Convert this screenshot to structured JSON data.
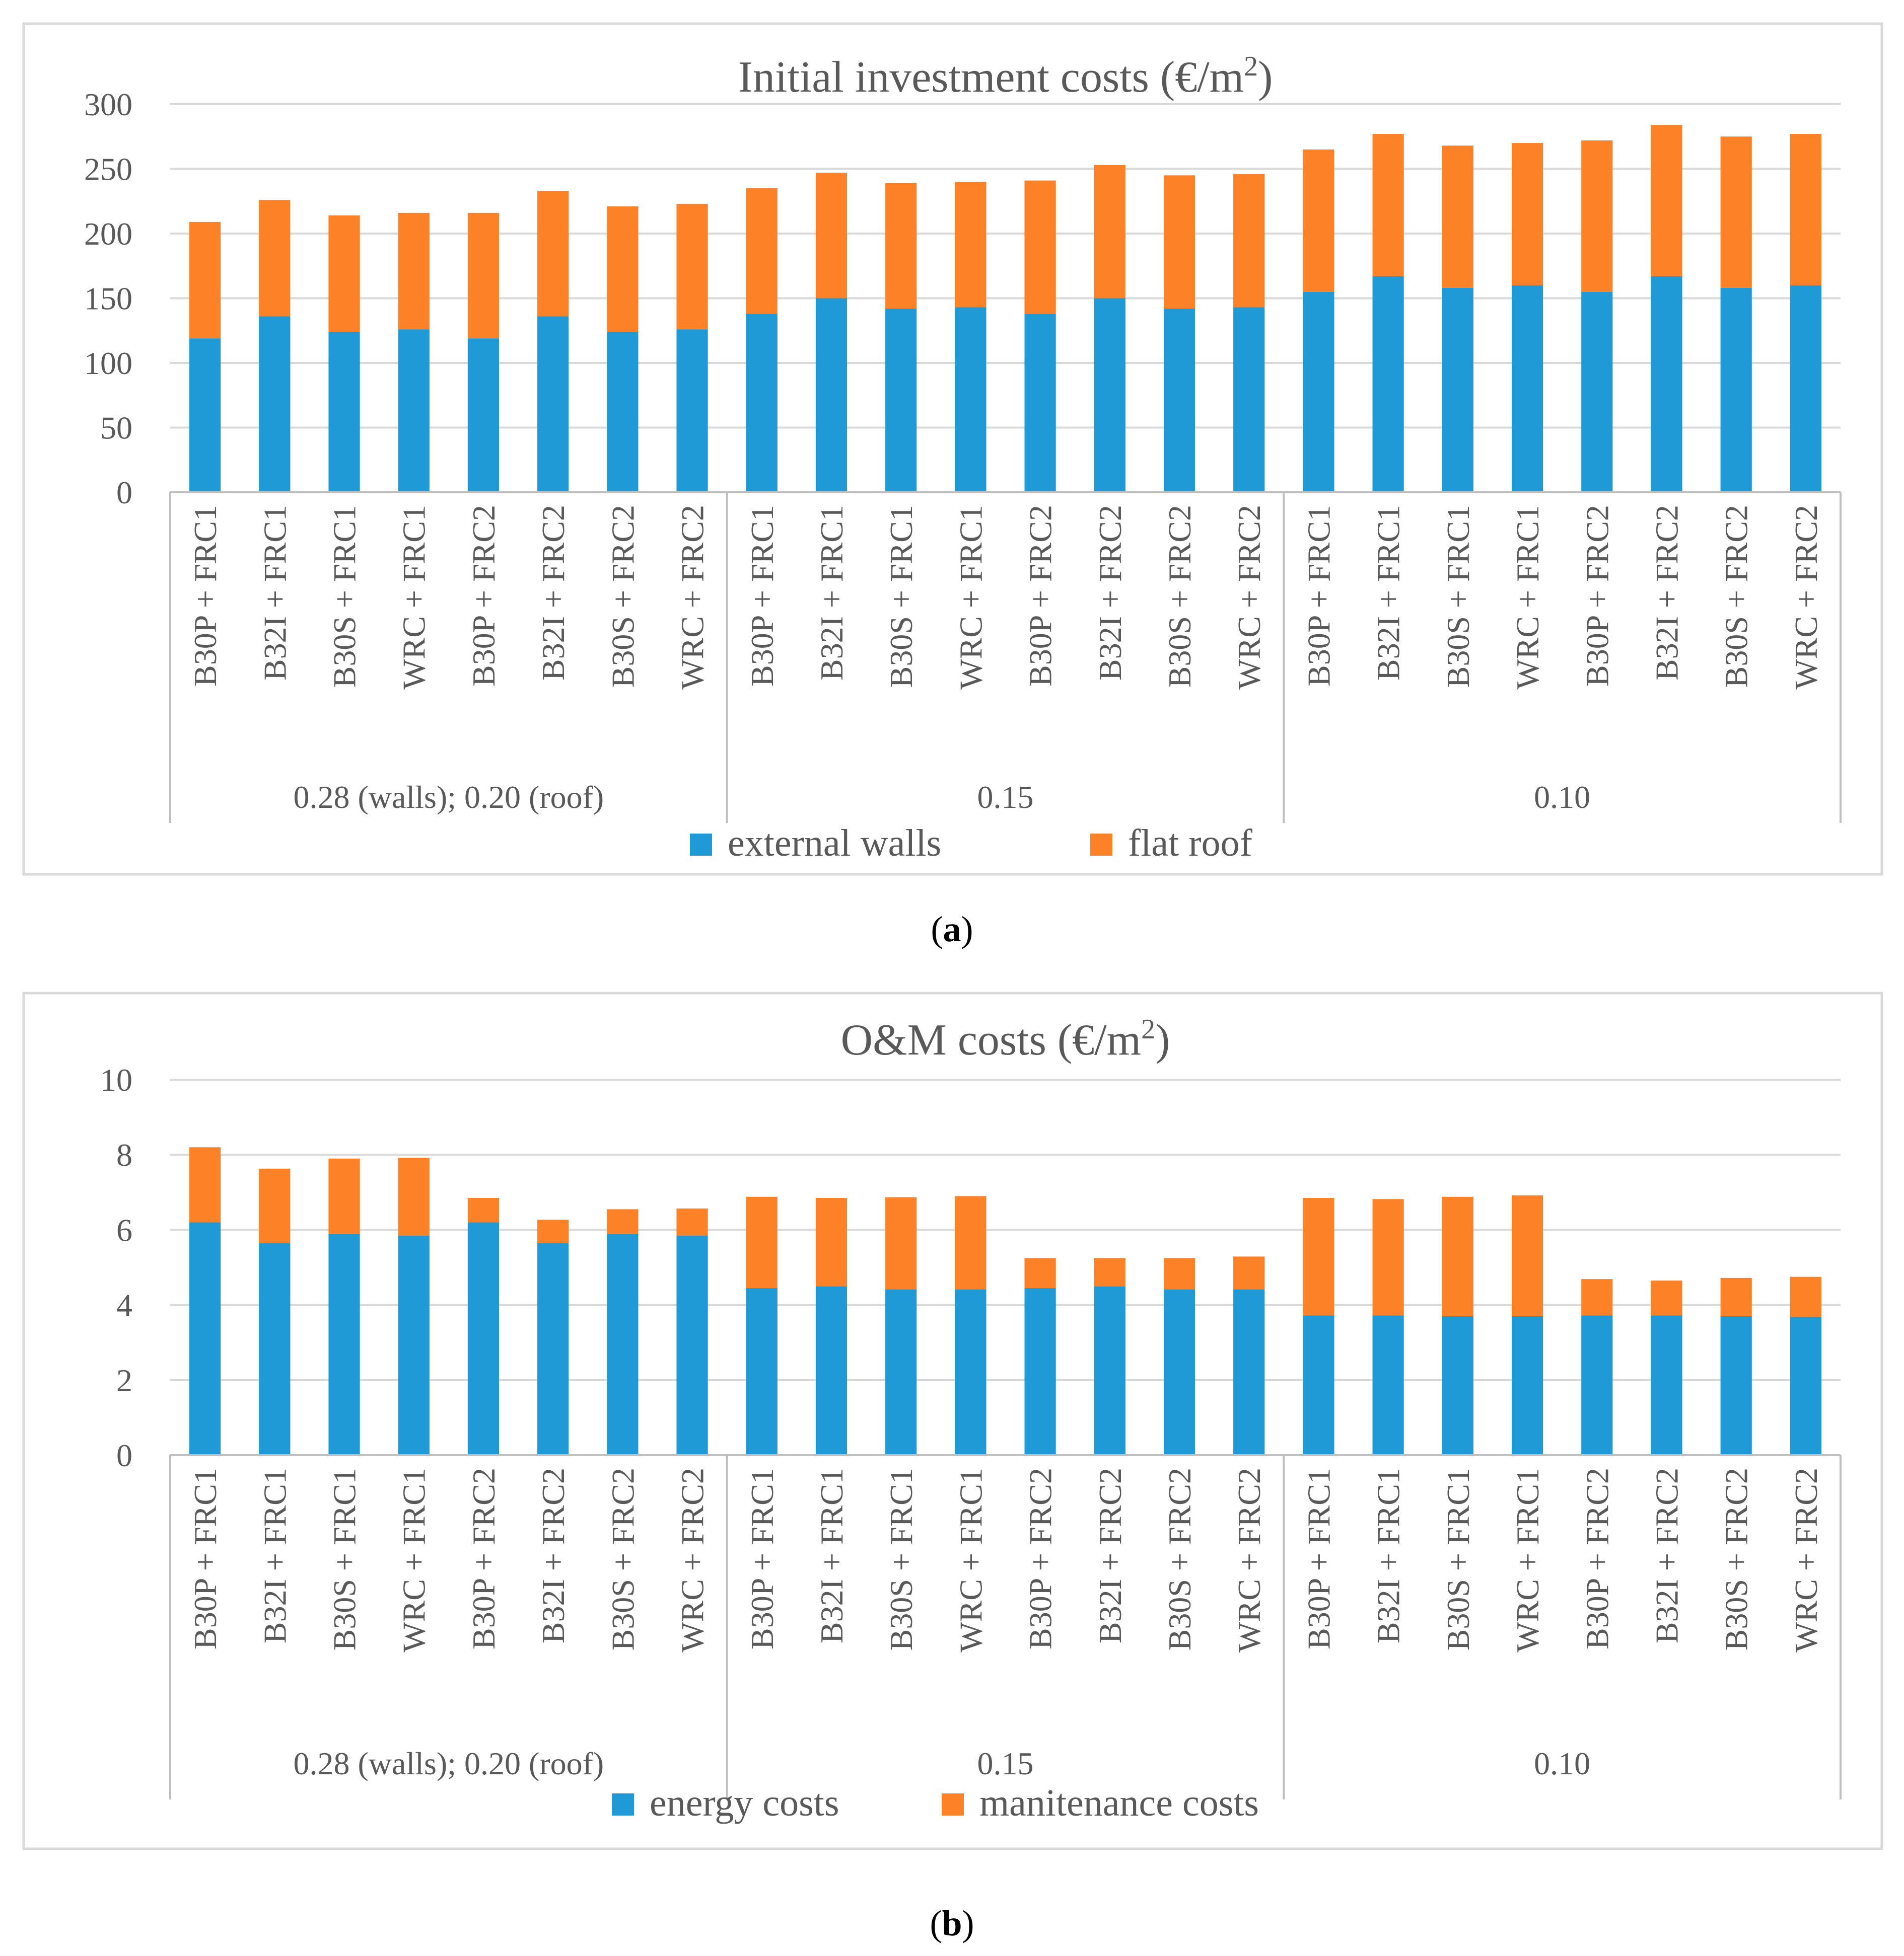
{
  "colors": {
    "series1": "#1f9ad6",
    "series2": "#fd8126",
    "axis": "#bfbfbf",
    "grid": "#d9d9d9",
    "text": "#595959"
  },
  "captions": {
    "a": "a",
    "b": "b"
  },
  "chart_data": [
    {
      "type": "bar",
      "stacked": true,
      "title": "Initial investment costs (€/m",
      "title_sup": "2",
      "title_end": ")",
      "ylim": [
        0,
        300
      ],
      "yticks": [
        0,
        50,
        100,
        150,
        200,
        250,
        300
      ],
      "legend_position": "bottom",
      "categories": [
        "B30P + FRC1",
        "B32I + FRC1",
        "B30S + FRC1",
        "WRC + FRC1",
        "B30P + FRC2",
        "B32I + FRC2",
        "B30S + FRC2",
        "WRC + FRC2",
        "B30P + FRC1",
        "B32I + FRC1",
        "B30S + FRC1",
        "WRC + FRC1",
        "B30P + FRC2",
        "B32I + FRC2",
        "B30S + FRC2",
        "WRC + FRC2",
        "B30P + FRC1",
        "B32I + FRC1",
        "B30S + FRC1",
        "WRC + FRC1",
        "B30P + FRC2",
        "B32I + FRC2",
        "B30S + FRC2",
        "WRC + FRC2"
      ],
      "groups": [
        {
          "label": "0.28 (walls); 0.20 (roof)",
          "count": 8
        },
        {
          "label": "0.15",
          "count": 8
        },
        {
          "label": "0.10",
          "count": 8
        }
      ],
      "series": [
        {
          "name": "external walls",
          "values": [
            119,
            136,
            124,
            126,
            119,
            136,
            124,
            126,
            138,
            150,
            142,
            143,
            138,
            150,
            142,
            143,
            155,
            167,
            158,
            160,
            155,
            167,
            158,
            160
          ]
        },
        {
          "name": "flat roof",
          "values": [
            90,
            90,
            90,
            90,
            97,
            97,
            97,
            97,
            97,
            97,
            97,
            97,
            103,
            103,
            103,
            103,
            110,
            110,
            110,
            110,
            117,
            117,
            117,
            117
          ]
        }
      ]
    },
    {
      "type": "bar",
      "stacked": true,
      "title": "O&M costs (€/m",
      "title_sup": "2",
      "title_end": ")",
      "ylim": [
        0,
        10
      ],
      "yticks": [
        0,
        2,
        4,
        6,
        8,
        10
      ],
      "legend_position": "bottom",
      "categories": [
        "B30P + FRC1",
        "B32I + FRC1",
        "B30S + FRC1",
        "WRC + FRC1",
        "B30P + FRC2",
        "B32I + FRC2",
        "B30S + FRC2",
        "WRC + FRC2",
        "B30P + FRC1",
        "B32I + FRC1",
        "B30S + FRC1",
        "WRC + FRC1",
        "B30P + FRC2",
        "B32I + FRC2",
        "B30S + FRC2",
        "WRC + FRC2",
        "B30P + FRC1",
        "B32I + FRC1",
        "B30S + FRC1",
        "WRC + FRC1",
        "B30P + FRC2",
        "B32I + FRC2",
        "B30S + FRC2",
        "WRC + FRC2"
      ],
      "groups": [
        {
          "label": "0.28 (walls); 0.20 (roof)",
          "count": 8
        },
        {
          "label": "0.15",
          "count": 8
        },
        {
          "label": "0.10",
          "count": 8
        }
      ],
      "series": [
        {
          "name": "energy costs",
          "values": [
            6.2,
            5.65,
            5.9,
            5.85,
            6.2,
            5.65,
            5.9,
            5.85,
            4.45,
            4.5,
            4.42,
            4.42,
            4.45,
            4.5,
            4.42,
            4.42,
            3.72,
            3.72,
            3.7,
            3.7,
            3.72,
            3.72,
            3.7,
            3.68
          ]
        },
        {
          "name": "manitenance costs",
          "values": [
            2.0,
            1.98,
            2.0,
            2.07,
            0.65,
            0.62,
            0.65,
            0.72,
            2.43,
            2.35,
            2.45,
            2.48,
            0.8,
            0.75,
            0.83,
            0.87,
            3.13,
            3.1,
            3.18,
            3.22,
            0.97,
            0.93,
            1.02,
            1.07
          ]
        }
      ]
    }
  ]
}
